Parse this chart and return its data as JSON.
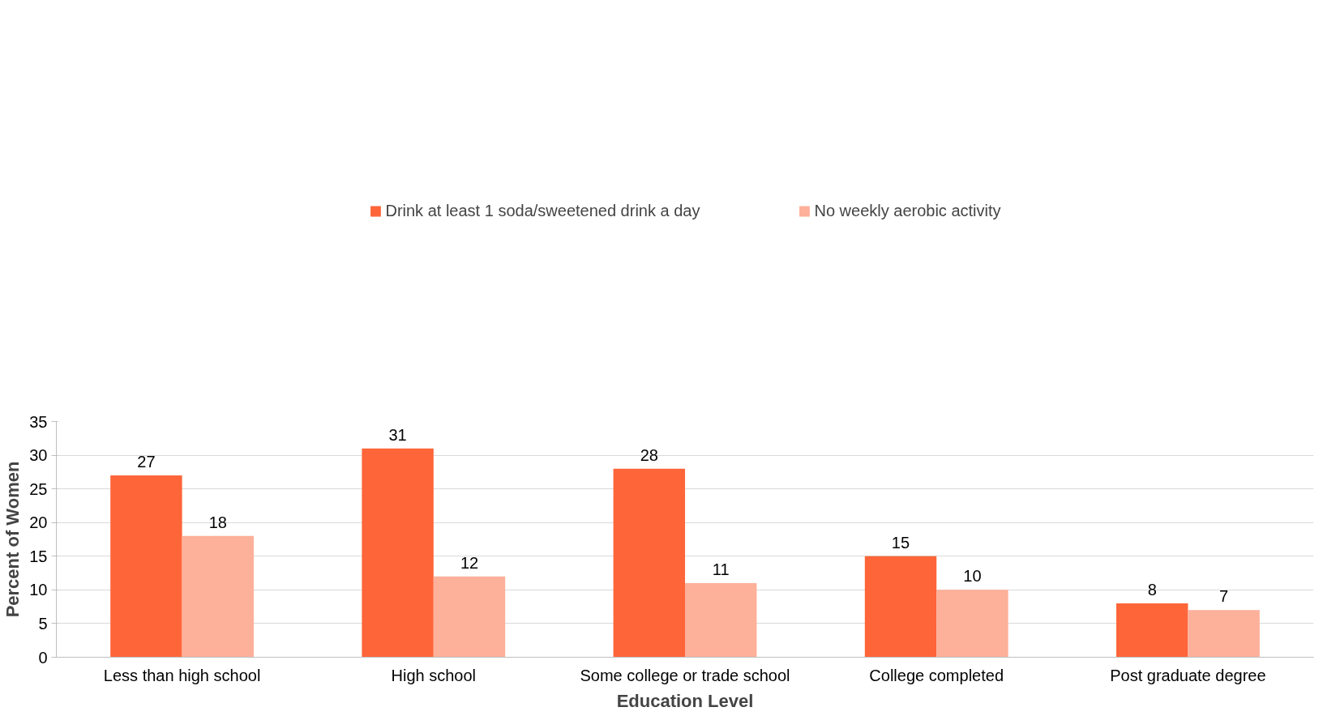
{
  "chart_data": {
    "type": "bar",
    "xlabel": "Education Level",
    "ylabel": "Percent of Women",
    "categories": [
      "Less than high school",
      "High school",
      "Some college or trade school",
      "College completed",
      "Post graduate degree"
    ],
    "series": [
      {
        "name": "Drink at least 1 soda/sweetened drink a day",
        "color": "#fe6539",
        "values": [
          27,
          31,
          28,
          15,
          8
        ]
      },
      {
        "name": "No weekly aerobic activity",
        "color": "#fdb09a",
        "values": [
          18,
          12,
          11,
          10,
          7
        ]
      }
    ],
    "ylim": [
      0,
      35
    ],
    "yticks": [
      0,
      5,
      10,
      15,
      20,
      25,
      30,
      35
    ],
    "grid": "y",
    "legend": "top",
    "data_labels": true
  }
}
